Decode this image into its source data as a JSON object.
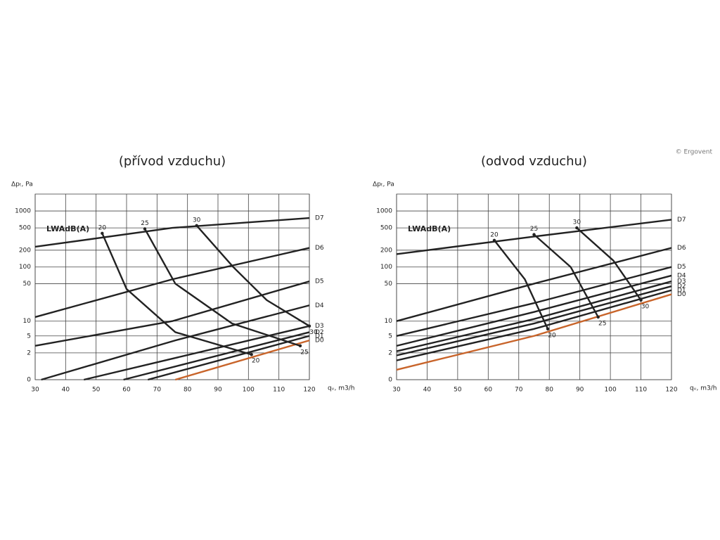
{
  "copyright": "© Ergovent",
  "chart_data": [
    {
      "type": "line",
      "title": "(přívod vzduchu)",
      "annotation": "LWAdB(A)",
      "ylabel": "Δpₜ, Pa",
      "xlabel": "qᵥ, m3/h",
      "xlim": [
        30,
        120
      ],
      "xticks": [
        30,
        40,
        50,
        60,
        70,
        80,
        90,
        100,
        110,
        120
      ],
      "ylim": [
        0,
        2000
      ],
      "yticks": [
        0,
        2,
        5,
        10,
        50,
        100,
        200,
        500,
        1000
      ],
      "yscale": "log1p",
      "grid": true,
      "series": [
        {
          "name": "D7",
          "color": "#222222",
          "x": [
            30,
            75,
            120
          ],
          "values": [
            230,
            500,
            750
          ]
        },
        {
          "name": "D6",
          "color": "#222222",
          "x": [
            30,
            75,
            120
          ],
          "values": [
            12,
            60,
            220
          ]
        },
        {
          "name": "D5",
          "color": "#222222",
          "x": [
            30,
            75,
            120
          ],
          "values": [
            3,
            10,
            55
          ]
        },
        {
          "name": "D4",
          "color": "#222222",
          "x": [
            32,
            76,
            120
          ],
          "values": [
            0,
            4,
            20
          ]
        },
        {
          "name": "D3",
          "color": "#222222",
          "x": [
            46,
            120
          ],
          "values": [
            0,
            8
          ]
        },
        {
          "name": "D2",
          "color": "#222222",
          "x": [
            59,
            120
          ],
          "values": [
            0,
            6
          ]
        },
        {
          "name": "D1",
          "color": "#222222",
          "x": [
            67,
            120
          ],
          "values": [
            0,
            5
          ]
        },
        {
          "name": "D0",
          "color": "#c8642a",
          "x": [
            76,
            120
          ],
          "values": [
            0,
            4
          ]
        }
      ],
      "sound_curves": [
        {
          "name": "20",
          "color": "#222222",
          "x": [
            52,
            60,
            76,
            101
          ],
          "values": [
            400,
            40,
            6,
            1.8
          ]
        },
        {
          "name": "25",
          "color": "#222222",
          "x": [
            66,
            76,
            94.6,
            117
          ],
          "values": [
            480,
            50,
            9,
            3
          ]
        },
        {
          "name": "30",
          "color": "#222222",
          "x": [
            83,
            95,
            106,
            120
          ],
          "values": [
            550,
            100,
            25,
            8
          ]
        }
      ]
    },
    {
      "type": "line",
      "title": "(odvod vzduchu)",
      "annotation": "LWAdB(A)",
      "ylabel": "Δpₜ, Pa",
      "xlabel": "qᵥ, m3/h",
      "xlim": [
        30,
        120
      ],
      "xticks": [
        30,
        40,
        50,
        60,
        70,
        80,
        90,
        100,
        110,
        120
      ],
      "ylim": [
        0,
        2000
      ],
      "yticks": [
        0,
        2,
        5,
        10,
        50,
        100,
        200,
        500,
        1000
      ],
      "yscale": "log1p",
      "grid": true,
      "series": [
        {
          "name": "D7",
          "color": "#222222",
          "x": [
            30,
            75,
            120
          ],
          "values": [
            170,
            350,
            700
          ]
        },
        {
          "name": "D6",
          "color": "#222222",
          "x": [
            30,
            75,
            120
          ],
          "values": [
            10,
            50,
            220
          ]
        },
        {
          "name": "D5",
          "color": "#222222",
          "x": [
            30,
            75,
            120
          ],
          "values": [
            5,
            22,
            100
          ]
        },
        {
          "name": "D4",
          "color": "#222222",
          "x": [
            30,
            75,
            120
          ],
          "values": [
            3,
            15,
            70
          ]
        },
        {
          "name": "D3",
          "color": "#222222",
          "x": [
            30,
            75,
            120
          ],
          "values": [
            2.2,
            11,
            55
          ]
        },
        {
          "name": "D2",
          "color": "#222222",
          "x": [
            30,
            75,
            120
          ],
          "values": [
            1.7,
            9,
            45
          ]
        },
        {
          "name": "D1",
          "color": "#222222",
          "x": [
            30,
            75,
            120
          ],
          "values": [
            1.2,
            7,
            38
          ]
        },
        {
          "name": "D0",
          "color": "#c8642a",
          "x": [
            30,
            75,
            120
          ],
          "values": [
            0.5,
            5,
            32
          ]
        }
      ],
      "sound_curves": [
        {
          "name": "20",
          "color": "#222222",
          "x": [
            62,
            72,
            79.5
          ],
          "values": [
            300,
            60,
            7
          ]
        },
        {
          "name": "25",
          "color": "#222222",
          "x": [
            75,
            87,
            96
          ],
          "values": [
            380,
            100,
            12
          ]
        },
        {
          "name": "30",
          "color": "#222222",
          "x": [
            89,
            101,
            110
          ],
          "values": [
            500,
            130,
            25
          ]
        }
      ]
    }
  ]
}
